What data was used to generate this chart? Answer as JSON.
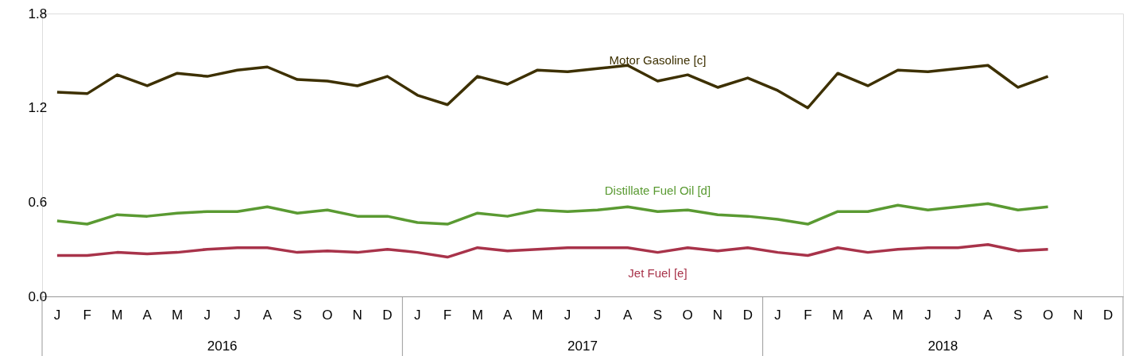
{
  "chart_data": {
    "type": "line",
    "categories": [
      "J",
      "F",
      "M",
      "A",
      "M",
      "J",
      "J",
      "A",
      "S",
      "O",
      "N",
      "D",
      "J",
      "F",
      "M",
      "A",
      "M",
      "J",
      "J",
      "A",
      "S",
      "O",
      "N",
      "D",
      "J",
      "F",
      "M",
      "A",
      "M",
      "J",
      "J",
      "A",
      "S",
      "O",
      "N",
      "D"
    ],
    "annotations": [
      "2016",
      "2017",
      "2018"
    ],
    "ylim": [
      0,
      1.8
    ],
    "yticks": [
      {
        "value": 0,
        "label": "0.0"
      },
      0.6,
      1.2,
      1.8
    ],
    "grid": false,
    "line_style": "solid",
    "marker": "none",
    "series": [
      {
        "name": "Motor Gasoline [c]",
        "color": "#3d3000",
        "values": [
          1.3,
          1.29,
          1.41,
          1.34,
          1.42,
          1.4,
          1.44,
          1.46,
          1.38,
          1.37,
          1.34,
          1.4,
          1.28,
          1.22,
          1.4,
          1.35,
          1.44,
          1.43,
          1.45,
          1.47,
          1.37,
          1.41,
          1.33,
          1.39,
          1.31,
          1.2,
          1.42,
          1.34,
          1.44,
          1.43,
          1.45,
          1.47,
          1.33,
          1.4,
          null,
          null
        ]
      },
      {
        "name": "Distillate Fuel Oil [d]",
        "color": "#5a9a32",
        "values": [
          0.48,
          0.46,
          0.52,
          0.51,
          0.53,
          0.54,
          0.54,
          0.57,
          0.53,
          0.55,
          0.51,
          0.51,
          0.47,
          0.46,
          0.53,
          0.51,
          0.55,
          0.54,
          0.55,
          0.57,
          0.54,
          0.55,
          0.52,
          0.51,
          0.49,
          0.46,
          0.54,
          0.54,
          0.58,
          0.55,
          0.57,
          0.59,
          0.55,
          0.57,
          null,
          null
        ]
      },
      {
        "name": "Jet Fuel [e]",
        "color": "#a8334a",
        "values": [
          0.26,
          0.26,
          0.28,
          0.27,
          0.28,
          0.3,
          0.31,
          0.31,
          0.28,
          0.29,
          0.28,
          0.3,
          0.28,
          0.25,
          0.31,
          0.29,
          0.3,
          0.31,
          0.31,
          0.31,
          0.28,
          0.31,
          0.29,
          0.31,
          0.28,
          0.26,
          0.31,
          0.28,
          0.3,
          0.31,
          0.31,
          0.33,
          0.29,
          0.3,
          null,
          null
        ]
      }
    ]
  }
}
